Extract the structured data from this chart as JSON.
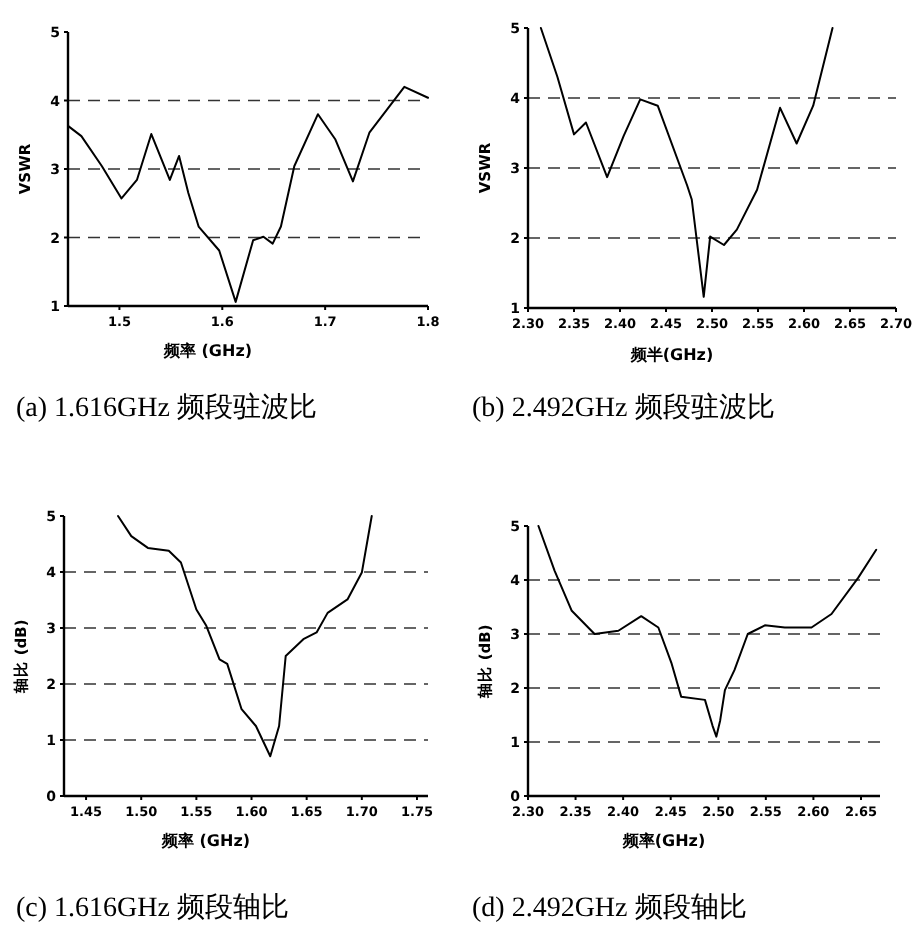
{
  "chart_data": [
    {
      "type": "line",
      "title": "(a) 1.616GHz 频段驻波比",
      "xlabel": "频率 (GHz)",
      "ylabel": "VSWR",
      "color": "#000000",
      "grid": "y",
      "xlim": [
        1.45,
        1.8
      ],
      "ylim": [
        1,
        5
      ],
      "xticks": [
        1.5,
        1.6,
        1.7,
        1.8
      ],
      "yticks": [
        1,
        2,
        3,
        4,
        5
      ],
      "x": [
        1.45,
        1.463,
        1.483,
        1.502,
        1.517,
        1.531,
        1.549,
        1.558,
        1.567,
        1.577,
        1.597,
        1.613,
        1.63,
        1.64,
        1.649,
        1.657,
        1.67,
        1.693,
        1.71,
        1.727,
        1.743,
        1.777,
        1.8
      ],
      "values": [
        3.63,
        3.48,
        3.04,
        2.57,
        2.84,
        3.51,
        2.84,
        3.19,
        2.65,
        2.16,
        1.81,
        1.06,
        1.96,
        2.01,
        1.91,
        2.16,
        3.04,
        3.8,
        3.43,
        2.82,
        3.53,
        4.2,
        4.04
      ]
    },
    {
      "type": "line",
      "title": "(b) 2.492GHz 频段驻波比",
      "xlabel": "频半(GHz)",
      "ylabel": "VSWR",
      "color": "#000000",
      "grid": "y",
      "xlim": [
        2.3,
        2.7
      ],
      "ylim": [
        1,
        5
      ],
      "xticks": [
        {
          "value": 2.3,
          "label": "2.30"
        },
        2.35,
        {
          "value": 2.4,
          "label": "2.40"
        },
        2.45,
        {
          "value": 2.5,
          "label": "2.50"
        },
        2.55,
        {
          "value": 2.6,
          "label": "2.60"
        },
        2.65,
        {
          "value": 2.7,
          "label": "2.70"
        }
      ],
      "yticks": [
        1,
        2,
        3,
        4,
        5
      ],
      "x": [
        2.314,
        2.332,
        2.35,
        2.363,
        2.386,
        2.404,
        2.422,
        2.441,
        2.473,
        2.478,
        2.491,
        2.498,
        2.513,
        2.527,
        2.549,
        2.574,
        2.592,
        2.61,
        2.631
      ],
      "values": [
        5,
        4.3,
        3.48,
        3.65,
        2.87,
        3.46,
        3.98,
        3.89,
        2.75,
        2.55,
        1.16,
        2.02,
        1.9,
        2.12,
        2.69,
        3.86,
        3.35,
        3.89,
        5
      ]
    },
    {
      "type": "line",
      "title": "(c) 1.616GHz  频段轴比",
      "xlabel": "频率 (GHz)",
      "ylabel": "轴比 (dB)",
      "color": "#000000",
      "grid": "y",
      "xlim": [
        1.43,
        1.76
      ],
      "ylim": [
        0,
        5
      ],
      "xticks": [
        1.45,
        {
          "value": 1.5,
          "label": "1.50"
        },
        1.55,
        {
          "value": 1.6,
          "label": "1.60"
        },
        1.65,
        {
          "value": 1.7,
          "label": "1.70"
        },
        1.75
      ],
      "yticks": [
        0,
        1,
        2,
        3,
        4,
        5
      ],
      "x": [
        1.479,
        1.491,
        1.506,
        1.525,
        1.536,
        1.55,
        1.559,
        1.571,
        1.578,
        1.591,
        1.604,
        1.617,
        1.625,
        1.631,
        1.647,
        1.659,
        1.669,
        1.687,
        1.7,
        1.709
      ],
      "values": [
        5,
        4.64,
        4.43,
        4.38,
        4.17,
        3.33,
        3.04,
        2.44,
        2.36,
        1.55,
        1.25,
        0.71,
        1.25,
        2.5,
        2.8,
        2.92,
        3.27,
        3.51,
        3.99,
        5
      ]
    },
    {
      "type": "line",
      "title": "(d) 2.492GHz 频段轴比",
      "xlabel": "频率(GHz)",
      "ylabel": "轴比 (dB)",
      "color": "#000000",
      "grid": "y",
      "xlim": [
        2.3,
        2.67
      ],
      "ylim": [
        0,
        5
      ],
      "xticks": [
        {
          "value": 2.3,
          "label": "2.30"
        },
        2.35,
        {
          "value": 2.4,
          "label": "2.40"
        },
        2.45,
        {
          "value": 2.5,
          "label": "2.50"
        },
        2.55,
        {
          "value": 2.6,
          "label": "2.60"
        },
        2.65
      ],
      "yticks": [
        0,
        1,
        2,
        3,
        4,
        5
      ],
      "x": [
        2.311,
        2.328,
        2.346,
        2.37,
        2.395,
        2.419,
        2.437,
        2.451,
        2.461,
        2.486,
        2.494,
        2.498,
        2.502,
        2.507,
        2.517,
        2.531,
        2.549,
        2.57,
        2.598,
        2.619,
        2.647,
        2.666
      ],
      "values": [
        5,
        4.17,
        3.43,
        3,
        3.06,
        3.33,
        3.12,
        2.45,
        1.84,
        1.78,
        1.3,
        1.1,
        1.4,
        1.96,
        2.33,
        3,
        3.16,
        3.12,
        3.12,
        3.37,
        4.04,
        4.56
      ]
    }
  ]
}
